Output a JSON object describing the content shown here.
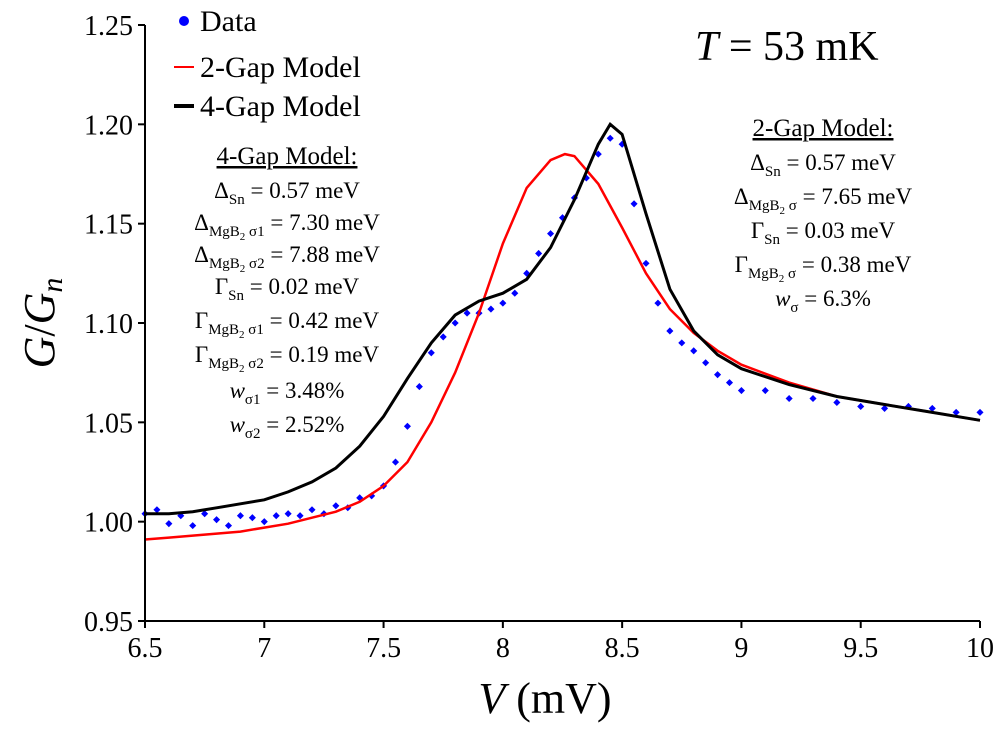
{
  "chart_data": {
    "type": "scatter",
    "title": "",
    "xlabel_italic": "V",
    "xlabel_unit": " (mV)",
    "ylabel_num": "G",
    "ylabel_den": "n",
    "xlim": [
      6.5,
      10
    ],
    "ylim": [
      0.95,
      1.25
    ],
    "x_ticks": [
      "6.5",
      "7",
      "7.5",
      "8",
      "8.5",
      "9",
      "9.5",
      "10"
    ],
    "y_ticks": [
      "0.95",
      "1.00",
      "1.05",
      "1.10",
      "1.15",
      "1.20",
      "1.25"
    ],
    "temperature": {
      "symbol": "T",
      "value": " = 53 mK"
    },
    "legend": [
      {
        "label": "Data",
        "color": "#0000ff",
        "marker": "dot"
      },
      {
        "label": "2-Gap Model",
        "color": "#ff0000",
        "marker": "line"
      },
      {
        "label": "4-Gap Model",
        "color": "#000000",
        "marker": "line"
      }
    ],
    "annotations": {
      "four_gap": {
        "title": "4-Gap Model:",
        "delta_sn": "0.57 meV",
        "delta_s1": "7.30 meV",
        "delta_s2": "7.88 meV",
        "gamma_sn": "0.02 meV",
        "gamma_s1": "0.42 meV",
        "gamma_s2": "0.19 meV",
        "w1": "3.48%",
        "w2": "2.52%"
      },
      "two_gap": {
        "title": "2-Gap Model:",
        "delta_sn": "0.57 meV",
        "delta_s": "7.65 meV",
        "gamma_sn": "0.03 meV",
        "gamma_s": "0.38 meV",
        "w": "6.3%"
      }
    },
    "series": [
      {
        "name": "Data",
        "color": "#0000ff",
        "points": [
          [
            6.5,
            1.004
          ],
          [
            6.55,
            1.006
          ],
          [
            6.6,
            0.999
          ],
          [
            6.65,
            1.003
          ],
          [
            6.7,
            0.998
          ],
          [
            6.75,
            1.004
          ],
          [
            6.8,
            1.001
          ],
          [
            6.85,
            0.998
          ],
          [
            6.9,
            1.003
          ],
          [
            6.95,
            1.002
          ],
          [
            7.0,
            1.0
          ],
          [
            7.05,
            1.003
          ],
          [
            7.1,
            1.004
          ],
          [
            7.15,
            1.003
          ],
          [
            7.2,
            1.006
          ],
          [
            7.25,
            1.004
          ],
          [
            7.3,
            1.008
          ],
          [
            7.35,
            1.007
          ],
          [
            7.4,
            1.012
          ],
          [
            7.45,
            1.013
          ],
          [
            7.5,
            1.018
          ],
          [
            7.55,
            1.03
          ],
          [
            7.6,
            1.048
          ],
          [
            7.65,
            1.068
          ],
          [
            7.7,
            1.085
          ],
          [
            7.75,
            1.093
          ],
          [
            7.8,
            1.1
          ],
          [
            7.85,
            1.105
          ],
          [
            7.9,
            1.105
          ],
          [
            7.95,
            1.107
          ],
          [
            8.0,
            1.11
          ],
          [
            8.05,
            1.115
          ],
          [
            8.1,
            1.125
          ],
          [
            8.15,
            1.135
          ],
          [
            8.2,
            1.145
          ],
          [
            8.25,
            1.153
          ],
          [
            8.3,
            1.163
          ],
          [
            8.35,
            1.173
          ],
          [
            8.4,
            1.185
          ],
          [
            8.45,
            1.193
          ],
          [
            8.5,
            1.19
          ],
          [
            8.55,
            1.16
          ],
          [
            8.6,
            1.13
          ],
          [
            8.65,
            1.11
          ],
          [
            8.7,
            1.096
          ],
          [
            8.75,
            1.09
          ],
          [
            8.8,
            1.086
          ],
          [
            8.85,
            1.08
          ],
          [
            8.9,
            1.074
          ],
          [
            8.95,
            1.07
          ],
          [
            9.0,
            1.066
          ],
          [
            9.1,
            1.066
          ],
          [
            9.2,
            1.062
          ],
          [
            9.3,
            1.062
          ],
          [
            9.4,
            1.06
          ],
          [
            9.5,
            1.058
          ],
          [
            9.6,
            1.057
          ],
          [
            9.7,
            1.058
          ],
          [
            9.8,
            1.057
          ],
          [
            9.9,
            1.055
          ],
          [
            10.0,
            1.055
          ]
        ]
      },
      {
        "name": "2-Gap Model",
        "color": "#ff0000",
        "points": [
          [
            6.5,
            0.991
          ],
          [
            6.6,
            0.992
          ],
          [
            6.7,
            0.993
          ],
          [
            6.8,
            0.994
          ],
          [
            6.9,
            0.995
          ],
          [
            7.0,
            0.997
          ],
          [
            7.1,
            0.999
          ],
          [
            7.2,
            1.002
          ],
          [
            7.3,
            1.005
          ],
          [
            7.4,
            1.01
          ],
          [
            7.5,
            1.018
          ],
          [
            7.6,
            1.03
          ],
          [
            7.7,
            1.05
          ],
          [
            7.8,
            1.075
          ],
          [
            7.9,
            1.105
          ],
          [
            8.0,
            1.14
          ],
          [
            8.1,
            1.168
          ],
          [
            8.2,
            1.182
          ],
          [
            8.26,
            1.185
          ],
          [
            8.3,
            1.184
          ],
          [
            8.4,
            1.17
          ],
          [
            8.5,
            1.148
          ],
          [
            8.6,
            1.125
          ],
          [
            8.7,
            1.107
          ],
          [
            8.8,
            1.095
          ],
          [
            8.9,
            1.086
          ],
          [
            9.0,
            1.079
          ],
          [
            9.2,
            1.07
          ],
          [
            9.4,
            1.063
          ],
          [
            9.6,
            1.059
          ],
          [
            9.8,
            1.055
          ],
          [
            10.0,
            1.051
          ]
        ]
      },
      {
        "name": "4-Gap Model",
        "color": "#000000",
        "points": [
          [
            6.5,
            1.004
          ],
          [
            6.6,
            1.004
          ],
          [
            6.7,
            1.005
          ],
          [
            6.8,
            1.007
          ],
          [
            6.9,
            1.009
          ],
          [
            7.0,
            1.011
          ],
          [
            7.1,
            1.015
          ],
          [
            7.2,
            1.02
          ],
          [
            7.3,
            1.027
          ],
          [
            7.4,
            1.038
          ],
          [
            7.5,
            1.053
          ],
          [
            7.6,
            1.072
          ],
          [
            7.7,
            1.09
          ],
          [
            7.8,
            1.104
          ],
          [
            7.9,
            1.111
          ],
          [
            8.0,
            1.115
          ],
          [
            8.1,
            1.122
          ],
          [
            8.2,
            1.138
          ],
          [
            8.3,
            1.162
          ],
          [
            8.4,
            1.19
          ],
          [
            8.45,
            1.2
          ],
          [
            8.5,
            1.195
          ],
          [
            8.6,
            1.155
          ],
          [
            8.7,
            1.117
          ],
          [
            8.8,
            1.096
          ],
          [
            8.9,
            1.084
          ],
          [
            9.0,
            1.077
          ],
          [
            9.2,
            1.069
          ],
          [
            9.4,
            1.063
          ],
          [
            9.6,
            1.059
          ],
          [
            9.8,
            1.055
          ],
          [
            10.0,
            1.051
          ]
        ]
      }
    ]
  }
}
